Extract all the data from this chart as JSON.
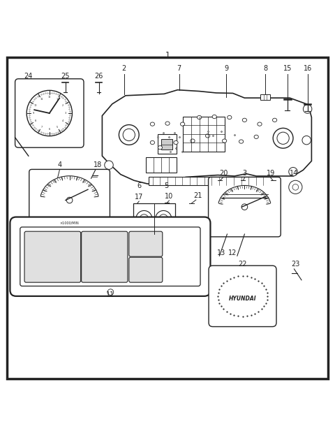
{
  "bg_color": "#ffffff",
  "line_color": "#222222",
  "figsize": [
    4.8,
    6.24
  ],
  "dpi": 100
}
